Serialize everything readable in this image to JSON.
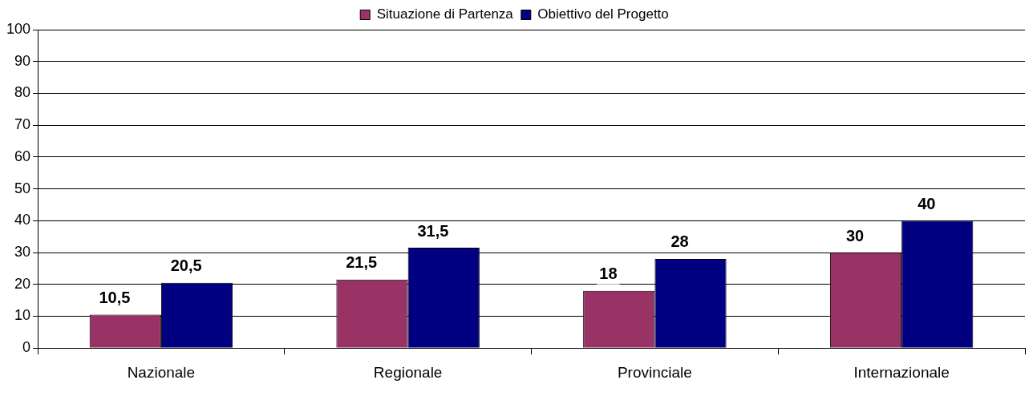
{
  "chart_data": {
    "type": "bar",
    "categories": [
      "Nazionale",
      "Regionale",
      "Provinciale",
      "Internazionale"
    ],
    "series": [
      {
        "name": "Situazione di Partenza",
        "color": "#993366",
        "values": [
          10.5,
          21.5,
          18,
          30
        ],
        "value_labels": [
          "10,5",
          "21,5",
          "18",
          "30"
        ]
      },
      {
        "name": "Obiettivo del Progetto",
        "color": "#000080",
        "values": [
          20.5,
          31.5,
          28,
          40
        ],
        "value_labels": [
          "20,5",
          "31,5",
          "28",
          "40"
        ]
      }
    ],
    "ylim": [
      0,
      100
    ],
    "yticks": [
      0,
      10,
      20,
      30,
      40,
      50,
      60,
      70,
      80,
      90,
      100
    ],
    "grid": "y",
    "legend": "top"
  }
}
